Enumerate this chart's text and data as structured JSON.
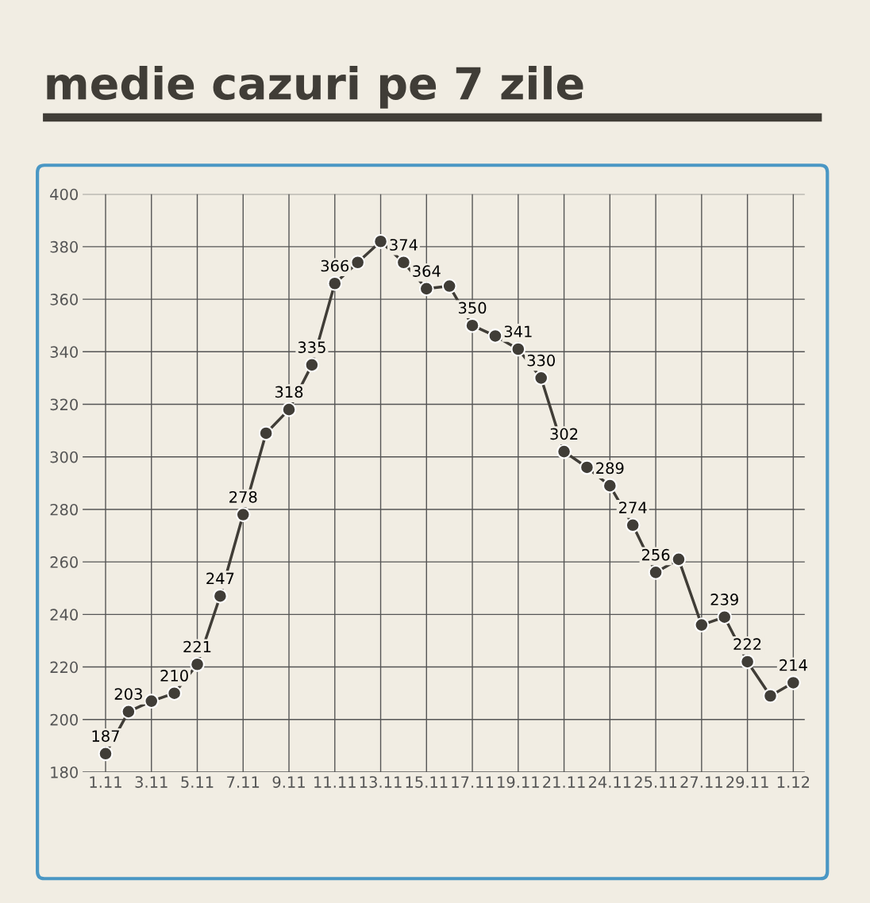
{
  "chart_data": {
    "type": "line",
    "title": "medie cazuri pe 7 zile",
    "categories": [
      "1.11",
      null,
      "3.11",
      null,
      "5.11",
      null,
      "7.11",
      null,
      "9.11",
      null,
      "11.11",
      null,
      "13.11",
      null,
      "15.11",
      null,
      "17.11",
      null,
      "19.11",
      null,
      "21.11",
      null,
      "24.11",
      null,
      "25.11",
      null,
      "27.11",
      null,
      "29.11",
      null,
      "1.12"
    ],
    "series": [
      {
        "color": "#403d37",
        "values": [
          187,
          203,
          207,
          210,
          221,
          247,
          278,
          309,
          318,
          335,
          366,
          374,
          382,
          374,
          364,
          365,
          350,
          346,
          341,
          330,
          302,
          296,
          289,
          274,
          256,
          261,
          236,
          239,
          222,
          209,
          214
        ],
        "value_labels": [
          "187",
          "203",
          null,
          "210",
          "221",
          "247",
          "278",
          null,
          "318",
          "335",
          "366",
          null,
          null,
          "374",
          "364",
          null,
          "350",
          null,
          "341",
          "330",
          "302",
          null,
          "289",
          "274",
          "256",
          null,
          null,
          "239",
          "222",
          null,
          "214"
        ]
      }
    ],
    "ylim": [
      180,
      400
    ],
    "yticks": [
      180,
      200,
      220,
      240,
      260,
      280,
      300,
      320,
      340,
      360,
      380,
      400
    ],
    "grid": true,
    "marker": "circle",
    "line_style": "solid"
  }
}
